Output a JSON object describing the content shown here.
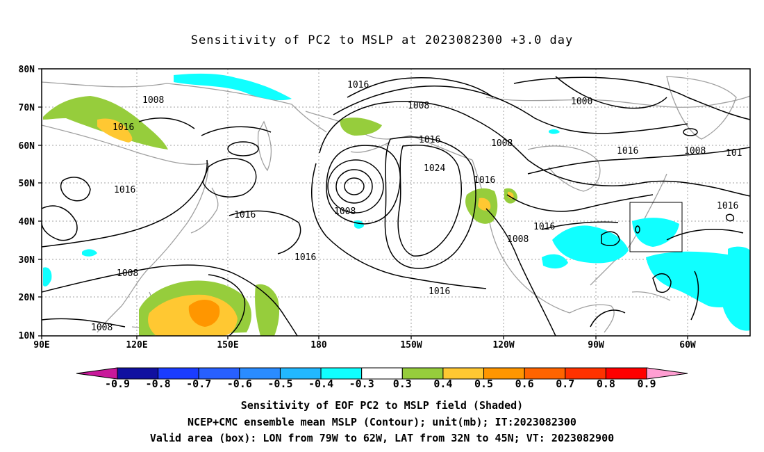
{
  "title": "Sensitivity of PC2 to MSLP at 2023082300 +3.0 day",
  "lat_ticks": [
    "80N",
    "70N",
    "60N",
    "50N",
    "40N",
    "30N",
    "20N",
    "10N"
  ],
  "lon_ticks": [
    "90E",
    "120E",
    "150E",
    "180",
    "150W",
    "120W",
    "90W",
    "60W"
  ],
  "contour_labels": {
    "c1": "1008",
    "c2": "1016",
    "c3": "1016",
    "c4": "1008",
    "c5": "1000",
    "c6": "1016",
    "c7": "1016",
    "c8": "1008",
    "c9": "1016",
    "c10": "1024",
    "c11": "1008",
    "c12": "1008",
    "c13": "101",
    "c14": "1016",
    "c15": "1016",
    "c16": "1016",
    "c17": "1008",
    "c18": "1016",
    "c19": "1016",
    "c20": "1016",
    "c21": "1008",
    "c22": "1008"
  },
  "colorbar": {
    "labels": [
      "-0.9",
      "-0.8",
      "-0.7",
      "-0.6",
      "-0.5",
      "-0.4",
      "-0.3",
      "0.3",
      "0.4",
      "0.5",
      "0.6",
      "0.7",
      "0.8",
      "0.9"
    ],
    "colors": [
      "#1010a0",
      "#1a3cff",
      "#2860ff",
      "#2a8cff",
      "#22b8ff",
      "#10ffff",
      "#ffffff",
      "#96cd3c",
      "#ffc832",
      "#ff9600",
      "#ff6400",
      "#ff3200",
      "#ff0000"
    ],
    "low_arrow_color": "#c8189a",
    "high_arrow_color": "#ff9ed2"
  },
  "captions": {
    "line1": "Sensitivity of EOF PC2 to MSLP field (Shaded)",
    "line2": "NCEP+CMC ensemble mean MSLP (Contour); unit(mb); IT:2023082300",
    "line3": "Valid area (box): LON from 79W to 62W, LAT from 32N to 45N; VT: 2023082900"
  }
}
